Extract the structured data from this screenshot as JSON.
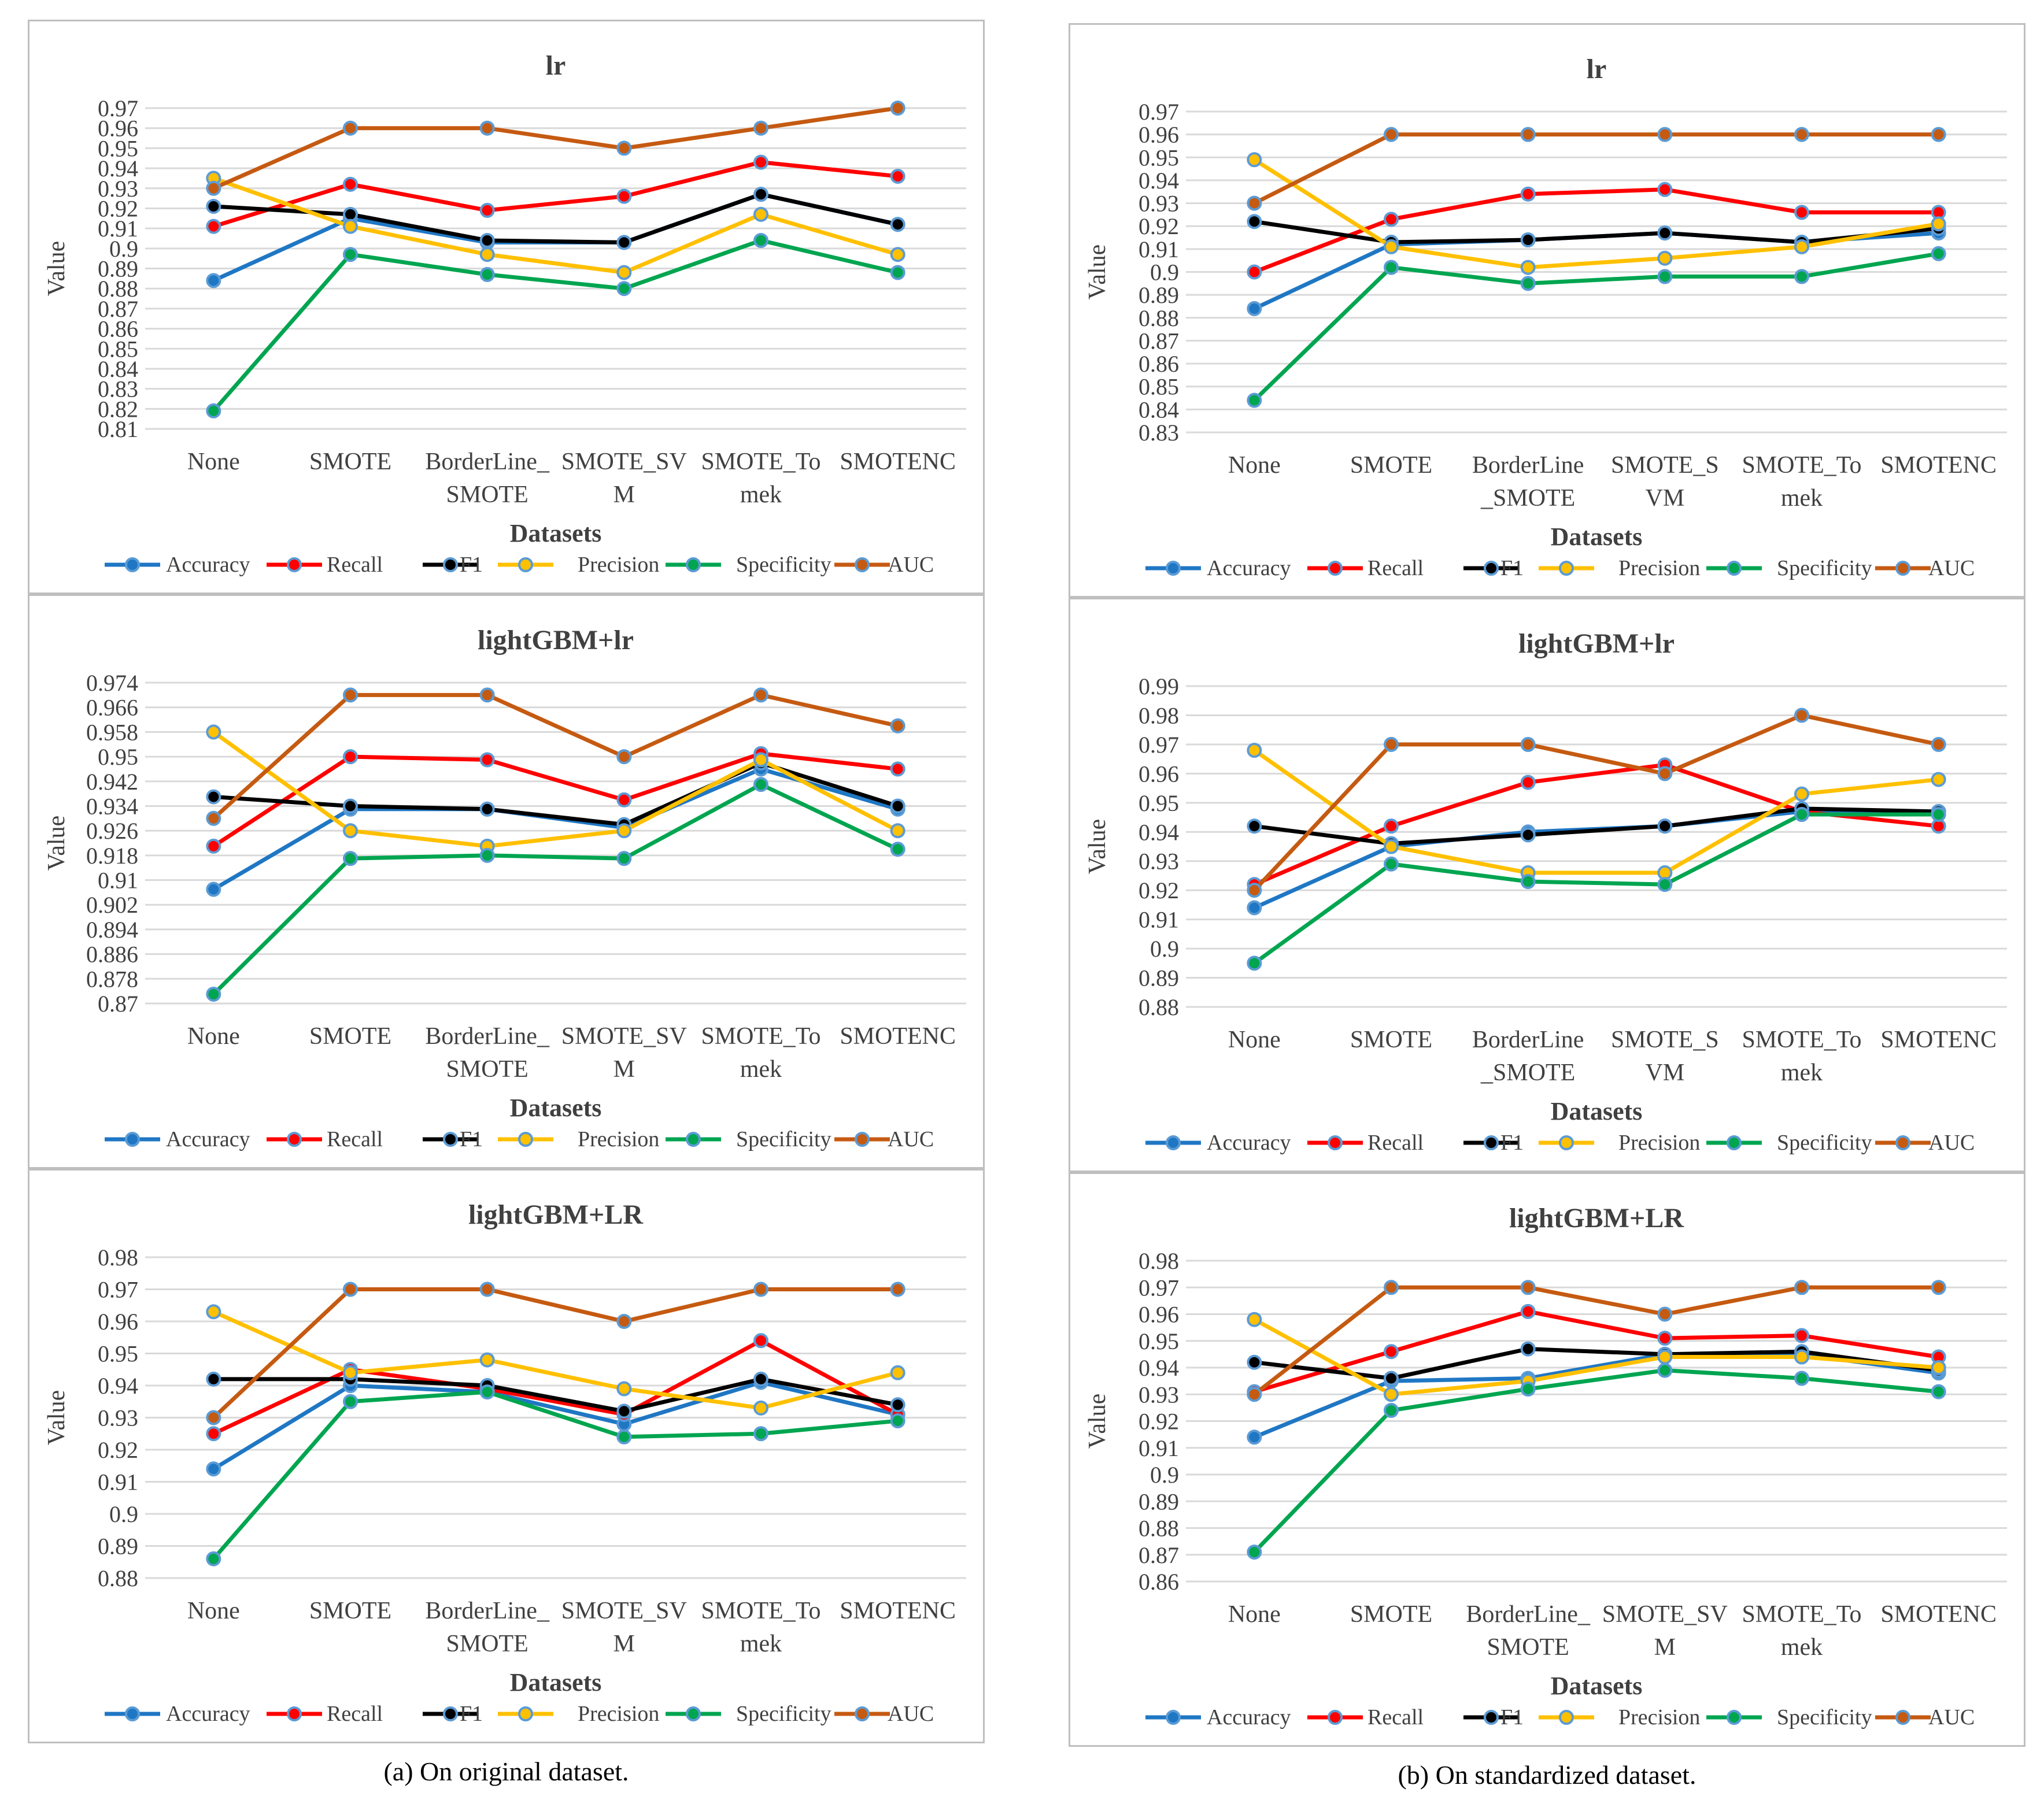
{
  "series_names": [
    "Accuracy",
    "Recall",
    "F1",
    "Precision",
    "Specificity",
    "AUC"
  ],
  "series_colors": {
    "Accuracy": "#1f77c4",
    "Recall": "#ff0000",
    "F1": "#000000",
    "Precision": "#ffc000",
    "Specificity": "#00a550",
    "AUC": "#c55a11"
  },
  "captions": {
    "left": "(a)  On original dataset.",
    "right": "(b)  On standardized dataset."
  },
  "chart_data": [
    {
      "type": "line",
      "title": "lr",
      "xlabel": "Datasets",
      "ylabel": "Value",
      "categories": [
        [
          "None"
        ],
        [
          "SMOTE"
        ],
        [
          "BorderLine_",
          "SMOTE"
        ],
        [
          "SMOTE_SV",
          "M"
        ],
        [
          "SMOTE_To",
          "mek"
        ],
        [
          "SMOTENC"
        ]
      ],
      "yticks": [
        "0.81",
        "0.82",
        "0.83",
        "0.84",
        "0.85",
        "0.86",
        "0.87",
        "0.88",
        "0.89",
        "0.9",
        "0.91",
        "0.92",
        "0.93",
        "0.94",
        "0.95",
        "0.96",
        "0.97"
      ],
      "ylim": [
        0.81,
        0.97
      ],
      "series": [
        {
          "name": "Accuracy",
          "values": [
            0.884,
            0.915,
            0.903,
            0.903,
            0.927,
            0.912
          ]
        },
        {
          "name": "Recall",
          "values": [
            0.911,
            0.932,
            0.919,
            0.926,
            0.943,
            0.936
          ]
        },
        {
          "name": "F1",
          "values": [
            0.921,
            0.917,
            0.904,
            0.903,
            0.927,
            0.912
          ]
        },
        {
          "name": "Precision",
          "values": [
            0.935,
            0.911,
            0.897,
            0.888,
            0.917,
            0.897
          ]
        },
        {
          "name": "Specificity",
          "values": [
            0.819,
            0.897,
            0.887,
            0.88,
            0.904,
            0.888
          ]
        },
        {
          "name": "AUC",
          "values": [
            0.93,
            0.96,
            0.96,
            0.95,
            0.96,
            0.97
          ]
        }
      ]
    },
    {
      "type": "line",
      "title": "lr",
      "xlabel": "Datasets",
      "ylabel": "Value",
      "categories": [
        [
          "None"
        ],
        [
          "SMOTE"
        ],
        [
          "BorderLine",
          "_SMOTE"
        ],
        [
          "SMOTE_S",
          "VM"
        ],
        [
          "SMOTE_To",
          "mek"
        ],
        [
          "SMOTENC"
        ]
      ],
      "yticks": [
        "0.83",
        "0.84",
        "0.85",
        "0.86",
        "0.87",
        "0.88",
        "0.89",
        "0.9",
        "0.91",
        "0.92",
        "0.93",
        "0.94",
        "0.95",
        "0.96",
        "0.97"
      ],
      "ylim": [
        0.83,
        0.97
      ],
      "series": [
        {
          "name": "Accuracy",
          "values": [
            0.884,
            0.912,
            0.914,
            0.917,
            0.913,
            0.917
          ]
        },
        {
          "name": "Recall",
          "values": [
            0.9,
            0.923,
            0.934,
            0.936,
            0.926,
            0.926
          ]
        },
        {
          "name": "F1",
          "values": [
            0.922,
            0.913,
            0.914,
            0.917,
            0.913,
            0.919
          ]
        },
        {
          "name": "Precision",
          "values": [
            0.949,
            0.911,
            0.902,
            0.906,
            0.911,
            0.921
          ]
        },
        {
          "name": "Specificity",
          "values": [
            0.844,
            0.902,
            0.895,
            0.898,
            0.898,
            0.908
          ]
        },
        {
          "name": "AUC",
          "values": [
            0.93,
            0.96,
            0.96,
            0.96,
            0.96,
            0.96
          ]
        }
      ]
    },
    {
      "type": "line",
      "title": "lightGBM+lr",
      "xlabel": "Datasets",
      "ylabel": "Value",
      "categories": [
        [
          "None"
        ],
        [
          "SMOTE"
        ],
        [
          "BorderLine_",
          "SMOTE"
        ],
        [
          "SMOTE_SV",
          "M"
        ],
        [
          "SMOTE_To",
          "mek"
        ],
        [
          "SMOTENC"
        ]
      ],
      "yticks": [
        "0.87",
        "0.878",
        "0.886",
        "0.894",
        "0.902",
        "0.91",
        "0.918",
        "0.926",
        "0.934",
        "0.942",
        "0.95",
        "0.958",
        "0.966",
        "0.974"
      ],
      "ylim": [
        0.87,
        0.974
      ],
      "series": [
        {
          "name": "Accuracy",
          "values": [
            0.907,
            0.933,
            0.933,
            0.927,
            0.946,
            0.933
          ]
        },
        {
          "name": "Recall",
          "values": [
            0.921,
            0.95,
            0.949,
            0.936,
            0.951,
            0.946
          ]
        },
        {
          "name": "F1",
          "values": [
            0.937,
            0.934,
            0.933,
            0.928,
            0.948,
            0.934
          ]
        },
        {
          "name": "Precision",
          "values": [
            0.958,
            0.926,
            0.921,
            0.926,
            0.949,
            0.926
          ]
        },
        {
          "name": "Specificity",
          "values": [
            0.873,
            0.917,
            0.918,
            0.917,
            0.941,
            0.92
          ]
        },
        {
          "name": "AUC",
          "values": [
            0.93,
            0.97,
            0.97,
            0.95,
            0.97,
            0.96
          ]
        }
      ]
    },
    {
      "type": "line",
      "title": "lightGBM+lr",
      "xlabel": "Datasets",
      "ylabel": "Value",
      "categories": [
        [
          "None"
        ],
        [
          "SMOTE"
        ],
        [
          "BorderLine",
          "_SMOTE"
        ],
        [
          "SMOTE_S",
          "VM"
        ],
        [
          "SMOTE_To",
          "mek"
        ],
        [
          "SMOTENC"
        ]
      ],
      "yticks": [
        "0.88",
        "0.89",
        "0.9",
        "0.91",
        "0.92",
        "0.93",
        "0.94",
        "0.95",
        "0.96",
        "0.97",
        "0.98",
        "0.99"
      ],
      "ylim": [
        0.88,
        0.99
      ],
      "series": [
        {
          "name": "Accuracy",
          "values": [
            0.914,
            0.935,
            0.94,
            0.942,
            0.947,
            0.947
          ]
        },
        {
          "name": "Recall",
          "values": [
            0.922,
            0.942,
            0.957,
            0.963,
            0.947,
            0.942
          ]
        },
        {
          "name": "F1",
          "values": [
            0.942,
            0.936,
            0.939,
            0.942,
            0.948,
            0.947
          ]
        },
        {
          "name": "Precision",
          "values": [
            0.968,
            0.935,
            0.926,
            0.926,
            0.953,
            0.958
          ]
        },
        {
          "name": "Specificity",
          "values": [
            0.895,
            0.929,
            0.923,
            0.922,
            0.946,
            0.946
          ]
        },
        {
          "name": "AUC",
          "values": [
            0.92,
            0.97,
            0.97,
            0.96,
            0.98,
            0.97
          ]
        }
      ]
    },
    {
      "type": "line",
      "title": "lightGBM+LR",
      "xlabel": "Datasets",
      "ylabel": "Value",
      "categories": [
        [
          "None"
        ],
        [
          "SMOTE"
        ],
        [
          "BorderLine_",
          "SMOTE"
        ],
        [
          "SMOTE_SV",
          "M"
        ],
        [
          "SMOTE_To",
          "mek"
        ],
        [
          "SMOTENC"
        ]
      ],
      "yticks": [
        "0.88",
        "0.89",
        "0.9",
        "0.91",
        "0.92",
        "0.93",
        "0.94",
        "0.95",
        "0.96",
        "0.97",
        "0.98"
      ],
      "ylim": [
        0.88,
        0.98
      ],
      "series": [
        {
          "name": "Accuracy",
          "values": [
            0.914,
            0.94,
            0.938,
            0.928,
            0.941,
            0.931
          ]
        },
        {
          "name": "Recall",
          "values": [
            0.925,
            0.945,
            0.939,
            0.931,
            0.954,
            0.931
          ]
        },
        {
          "name": "F1",
          "values": [
            0.942,
            0.942,
            0.94,
            0.932,
            0.942,
            0.934
          ]
        },
        {
          "name": "Precision",
          "values": [
            0.963,
            0.944,
            0.948,
            0.939,
            0.933,
            0.944
          ]
        },
        {
          "name": "Specificity",
          "values": [
            0.886,
            0.935,
            0.938,
            0.924,
            0.925,
            0.929
          ]
        },
        {
          "name": "AUC",
          "values": [
            0.93,
            0.97,
            0.97,
            0.96,
            0.97,
            0.97
          ]
        }
      ]
    },
    {
      "type": "line",
      "title": "lightGBM+LR",
      "xlabel": "Datasets",
      "ylabel": "Value",
      "categories": [
        [
          "None"
        ],
        [
          "SMOTE"
        ],
        [
          "BorderLine_",
          "SMOTE"
        ],
        [
          "SMOTE_SV",
          "M"
        ],
        [
          "SMOTE_To",
          "mek"
        ],
        [
          "SMOTENC"
        ]
      ],
      "yticks": [
        "0.86",
        "0.87",
        "0.88",
        "0.89",
        "0.9",
        "0.91",
        "0.92",
        "0.93",
        "0.94",
        "0.95",
        "0.96",
        "0.97",
        "0.98"
      ],
      "ylim": [
        0.86,
        0.98
      ],
      "series": [
        {
          "name": "Accuracy",
          "values": [
            0.914,
            0.935,
            0.936,
            0.945,
            0.945,
            0.938
          ]
        },
        {
          "name": "Recall",
          "values": [
            0.931,
            0.946,
            0.961,
            0.951,
            0.952,
            0.944
          ]
        },
        {
          "name": "F1",
          "values": [
            0.942,
            0.936,
            0.947,
            0.945,
            0.946,
            0.939
          ]
        },
        {
          "name": "Precision",
          "values": [
            0.958,
            0.93,
            0.935,
            0.944,
            0.944,
            0.94
          ]
        },
        {
          "name": "Specificity",
          "values": [
            0.871,
            0.924,
            0.932,
            0.939,
            0.936,
            0.931
          ]
        },
        {
          "name": "AUC",
          "values": [
            0.93,
            0.97,
            0.97,
            0.96,
            0.97,
            0.97
          ]
        }
      ]
    }
  ]
}
